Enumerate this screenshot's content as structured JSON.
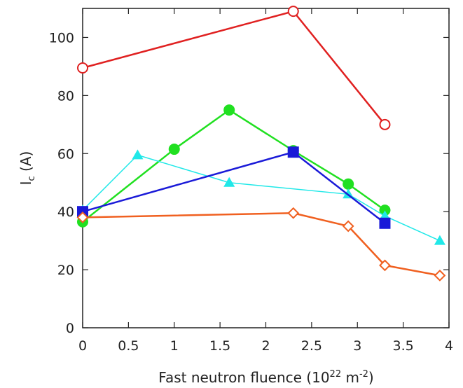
{
  "chart_data": {
    "type": "line",
    "xlabel": {
      "main": "Fast neutron fluence (10",
      "sup1": "22",
      "mid": " m",
      "sup2": "-2",
      "end": ")"
    },
    "ylabel": {
      "main": "I",
      "sub": "c",
      "end": " (A)"
    },
    "xlim": [
      0,
      4
    ],
    "ylim": [
      0,
      110
    ],
    "xticks": [
      "0",
      "0.5",
      "1",
      "1.5",
      "2",
      "2.5",
      "3",
      "3.5",
      "4"
    ],
    "xtick_values": [
      0,
      0.5,
      1,
      1.5,
      2,
      2.5,
      3,
      3.5,
      4
    ],
    "yticks": [
      "0",
      "20",
      "40",
      "60",
      "80",
      "100"
    ],
    "ytick_values": [
      0,
      20,
      40,
      60,
      80,
      100
    ],
    "grid": false,
    "series": [
      {
        "color": "#e02020",
        "marker": "open-circle",
        "x": [
          0,
          2.3,
          3.3
        ],
        "y": [
          89.5,
          109,
          70
        ]
      },
      {
        "color": "#20e020",
        "marker": "filled-circle",
        "x": [
          0,
          1.0,
          1.6,
          2.3,
          2.9,
          3.3
        ],
        "y": [
          36.5,
          61.5,
          75,
          61,
          49.5,
          40.5
        ]
      },
      {
        "color": "#20e8e8",
        "marker": "filled-triangle",
        "x": [
          0,
          0.6,
          1.6,
          2.9,
          3.3,
          3.9
        ],
        "y": [
          40.5,
          59.5,
          50,
          46,
          38.5,
          30
        ]
      },
      {
        "color": "#1a1ad8",
        "marker": "filled-square",
        "x": [
          0,
          2.3,
          3.3
        ],
        "y": [
          40,
          60.5,
          36
        ]
      },
      {
        "color": "#f06020",
        "marker": "open-diamond",
        "x": [
          0,
          2.3,
          2.9,
          3.3,
          3.9
        ],
        "y": [
          38,
          39.5,
          35,
          21.5,
          18
        ]
      }
    ]
  }
}
